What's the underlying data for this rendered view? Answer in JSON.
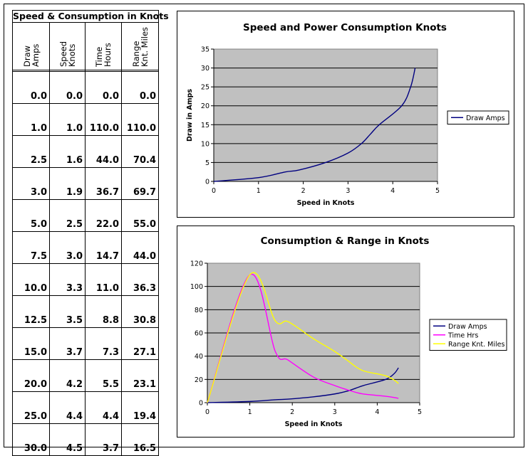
{
  "table": {
    "title": "Speed & Consumption in Knots",
    "headers": [
      [
        "Draw",
        "Amps"
      ],
      [
        "Speed",
        "Knots"
      ],
      [
        "Time",
        "Hours"
      ],
      [
        "Range",
        "Knt. Miles"
      ]
    ],
    "rows": [
      [
        "0.0",
        "0.0",
        "0.0",
        "0.0"
      ],
      [
        "1.0",
        "1.0",
        "110.0",
        "110.0"
      ],
      [
        "2.5",
        "1.6",
        "44.0",
        "70.4"
      ],
      [
        "3.0",
        "1.9",
        "36.7",
        "69.7"
      ],
      [
        "5.0",
        "2.5",
        "22.0",
        "55.0"
      ],
      [
        "7.5",
        "3.0",
        "14.7",
        "44.0"
      ],
      [
        "10.0",
        "3.3",
        "11.0",
        "36.3"
      ],
      [
        "12.5",
        "3.5",
        "8.8",
        "30.8"
      ],
      [
        "15.0",
        "3.7",
        "7.3",
        "27.1"
      ],
      [
        "20.0",
        "4.2",
        "5.5",
        "23.1"
      ],
      [
        "25.0",
        "4.4",
        "4.4",
        "19.4"
      ],
      [
        "30.0",
        "4.5",
        "3.7",
        "16.5"
      ]
    ]
  },
  "chart_data": [
    {
      "type": "line",
      "title": "Speed and Power Consumption Knots",
      "xlabel": "Speed in Knots",
      "ylabel": "Draw in Amps",
      "xlim": [
        0,
        5
      ],
      "ylim": [
        0,
        35
      ],
      "xticks": [
        "0",
        "1",
        "2",
        "3",
        "4",
        "5"
      ],
      "yticks": [
        "0",
        "5",
        "10",
        "15",
        "20",
        "25",
        "30",
        "35"
      ],
      "grid": true,
      "legend_position": "right",
      "plot_background": "#c0c0c0",
      "series": [
        {
          "name": "Draw Amps",
          "color": "#000080",
          "points": [
            [
              0.0,
              0.0
            ],
            [
              1.0,
              1.0
            ],
            [
              1.6,
              2.5
            ],
            [
              1.9,
              3.0
            ],
            [
              2.5,
              5.0
            ],
            [
              3.0,
              7.5
            ],
            [
              3.3,
              10.0
            ],
            [
              3.5,
              12.5
            ],
            [
              3.7,
              15.0
            ],
            [
              4.2,
              20.0
            ],
            [
              4.4,
              25.0
            ],
            [
              4.5,
              30.0
            ]
          ]
        }
      ]
    },
    {
      "type": "line",
      "title": "Consumption & Range in Knots",
      "xlabel": "Speed in Knots",
      "ylabel": "",
      "xlim": [
        0,
        5
      ],
      "ylim": [
        0,
        120
      ],
      "xticks": [
        "0",
        "1",
        "2",
        "3",
        "4",
        "5"
      ],
      "yticks": [
        "0",
        "20",
        "40",
        "60",
        "80",
        "100",
        "120"
      ],
      "grid": true,
      "legend_position": "right",
      "plot_background": "#c0c0c0",
      "series": [
        {
          "name": "Draw Amps",
          "color": "#000080",
          "points": [
            [
              0.0,
              0.0
            ],
            [
              1.0,
              1.0
            ],
            [
              1.6,
              2.5
            ],
            [
              1.9,
              3.0
            ],
            [
              2.5,
              5.0
            ],
            [
              3.0,
              7.5
            ],
            [
              3.3,
              10.0
            ],
            [
              3.5,
              12.5
            ],
            [
              3.7,
              15.0
            ],
            [
              4.2,
              20.0
            ],
            [
              4.4,
              25.0
            ],
            [
              4.5,
              30.0
            ]
          ]
        },
        {
          "name": "Time Hrs",
          "color": "#ff00ff",
          "points": [
            [
              0.0,
              0.0
            ],
            [
              1.0,
              110.0
            ],
            [
              1.6,
              44.0
            ],
            [
              1.9,
              36.7
            ],
            [
              2.5,
              22.0
            ],
            [
              3.0,
              14.7
            ],
            [
              3.3,
              11.0
            ],
            [
              3.5,
              8.8
            ],
            [
              3.7,
              7.3
            ],
            [
              4.2,
              5.5
            ],
            [
              4.4,
              4.4
            ],
            [
              4.5,
              3.7
            ]
          ]
        },
        {
          "name": "Range  Knt. Miles",
          "color": "#ffff00",
          "points": [
            [
              0.0,
              0.0
            ],
            [
              1.0,
              110.0
            ],
            [
              1.6,
              70.4
            ],
            [
              1.9,
              69.7
            ],
            [
              2.5,
              55.0
            ],
            [
              3.0,
              44.0
            ],
            [
              3.3,
              36.3
            ],
            [
              3.5,
              30.8
            ],
            [
              3.7,
              27.1
            ],
            [
              4.2,
              23.1
            ],
            [
              4.4,
              19.4
            ],
            [
              4.5,
              16.5
            ]
          ]
        }
      ]
    }
  ]
}
